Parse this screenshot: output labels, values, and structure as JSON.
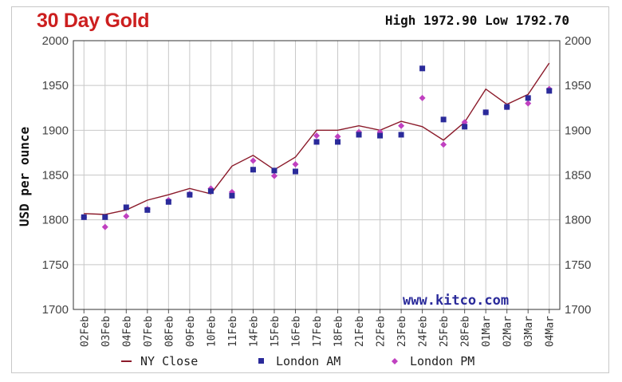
{
  "title": "30 Day Gold",
  "high_low": "High 1972.90 Low 1792.70",
  "watermark": "www.kitco.com",
  "colors": {
    "title": "#cc1f1f",
    "ny_close": "#8b1a2a",
    "london_am": "#2a2a9a",
    "london_pm": "#c040c0",
    "grid": "#c8c8c8",
    "plot_border": "#333333"
  },
  "chart_data": {
    "type": "line",
    "title": "30 Day Gold",
    "ylabel": "USD per ounce",
    "xlabel": "",
    "ylim": [
      1700,
      2000
    ],
    "yticks": [
      1700,
      1750,
      1800,
      1850,
      1900,
      1950,
      2000
    ],
    "grid": true,
    "legend_position": "bottom",
    "categories": [
      "02Feb",
      "03Feb",
      "04Feb",
      "07Feb",
      "08Feb",
      "09Feb",
      "10Feb",
      "11Feb",
      "14Feb",
      "15Feb",
      "16Feb",
      "17Feb",
      "18Feb",
      "21Feb",
      "22Feb",
      "23Feb",
      "24Feb",
      "25Feb",
      "28Feb",
      "01Mar",
      "02Mar",
      "03Mar",
      "04Mar"
    ],
    "series": [
      {
        "name": "NY Close",
        "style": "line",
        "color": "#8b1a2a",
        "values": [
          1807,
          1806,
          1811,
          1822,
          1828,
          1835,
          1829,
          1860,
          1872,
          1856,
          1870,
          1900,
          1900,
          1905,
          1900,
          1910,
          1904,
          1889,
          1909,
          1946,
          1929,
          1940,
          1975
        ]
      },
      {
        "name": "London AM",
        "style": "square",
        "color": "#2a2a9a",
        "values": [
          1803,
          1803,
          1814,
          1811,
          1820,
          1828,
          1832,
          1827,
          1856,
          1855,
          1854,
          1887,
          1887,
          1895,
          1894,
          1895,
          1969,
          1912,
          1904,
          1920,
          1926,
          1936,
          1944
        ]
      },
      {
        "name": "London PM",
        "style": "diamond",
        "color": "#c040c0",
        "values": [
          1803,
          1792,
          1804,
          1812,
          1822,
          1829,
          1835,
          1831,
          1866,
          1849,
          1862,
          1894,
          1893,
          1898,
          1898,
          1905,
          1936,
          1884,
          1909,
          1920,
          1926,
          1930,
          1946
        ]
      }
    ]
  }
}
